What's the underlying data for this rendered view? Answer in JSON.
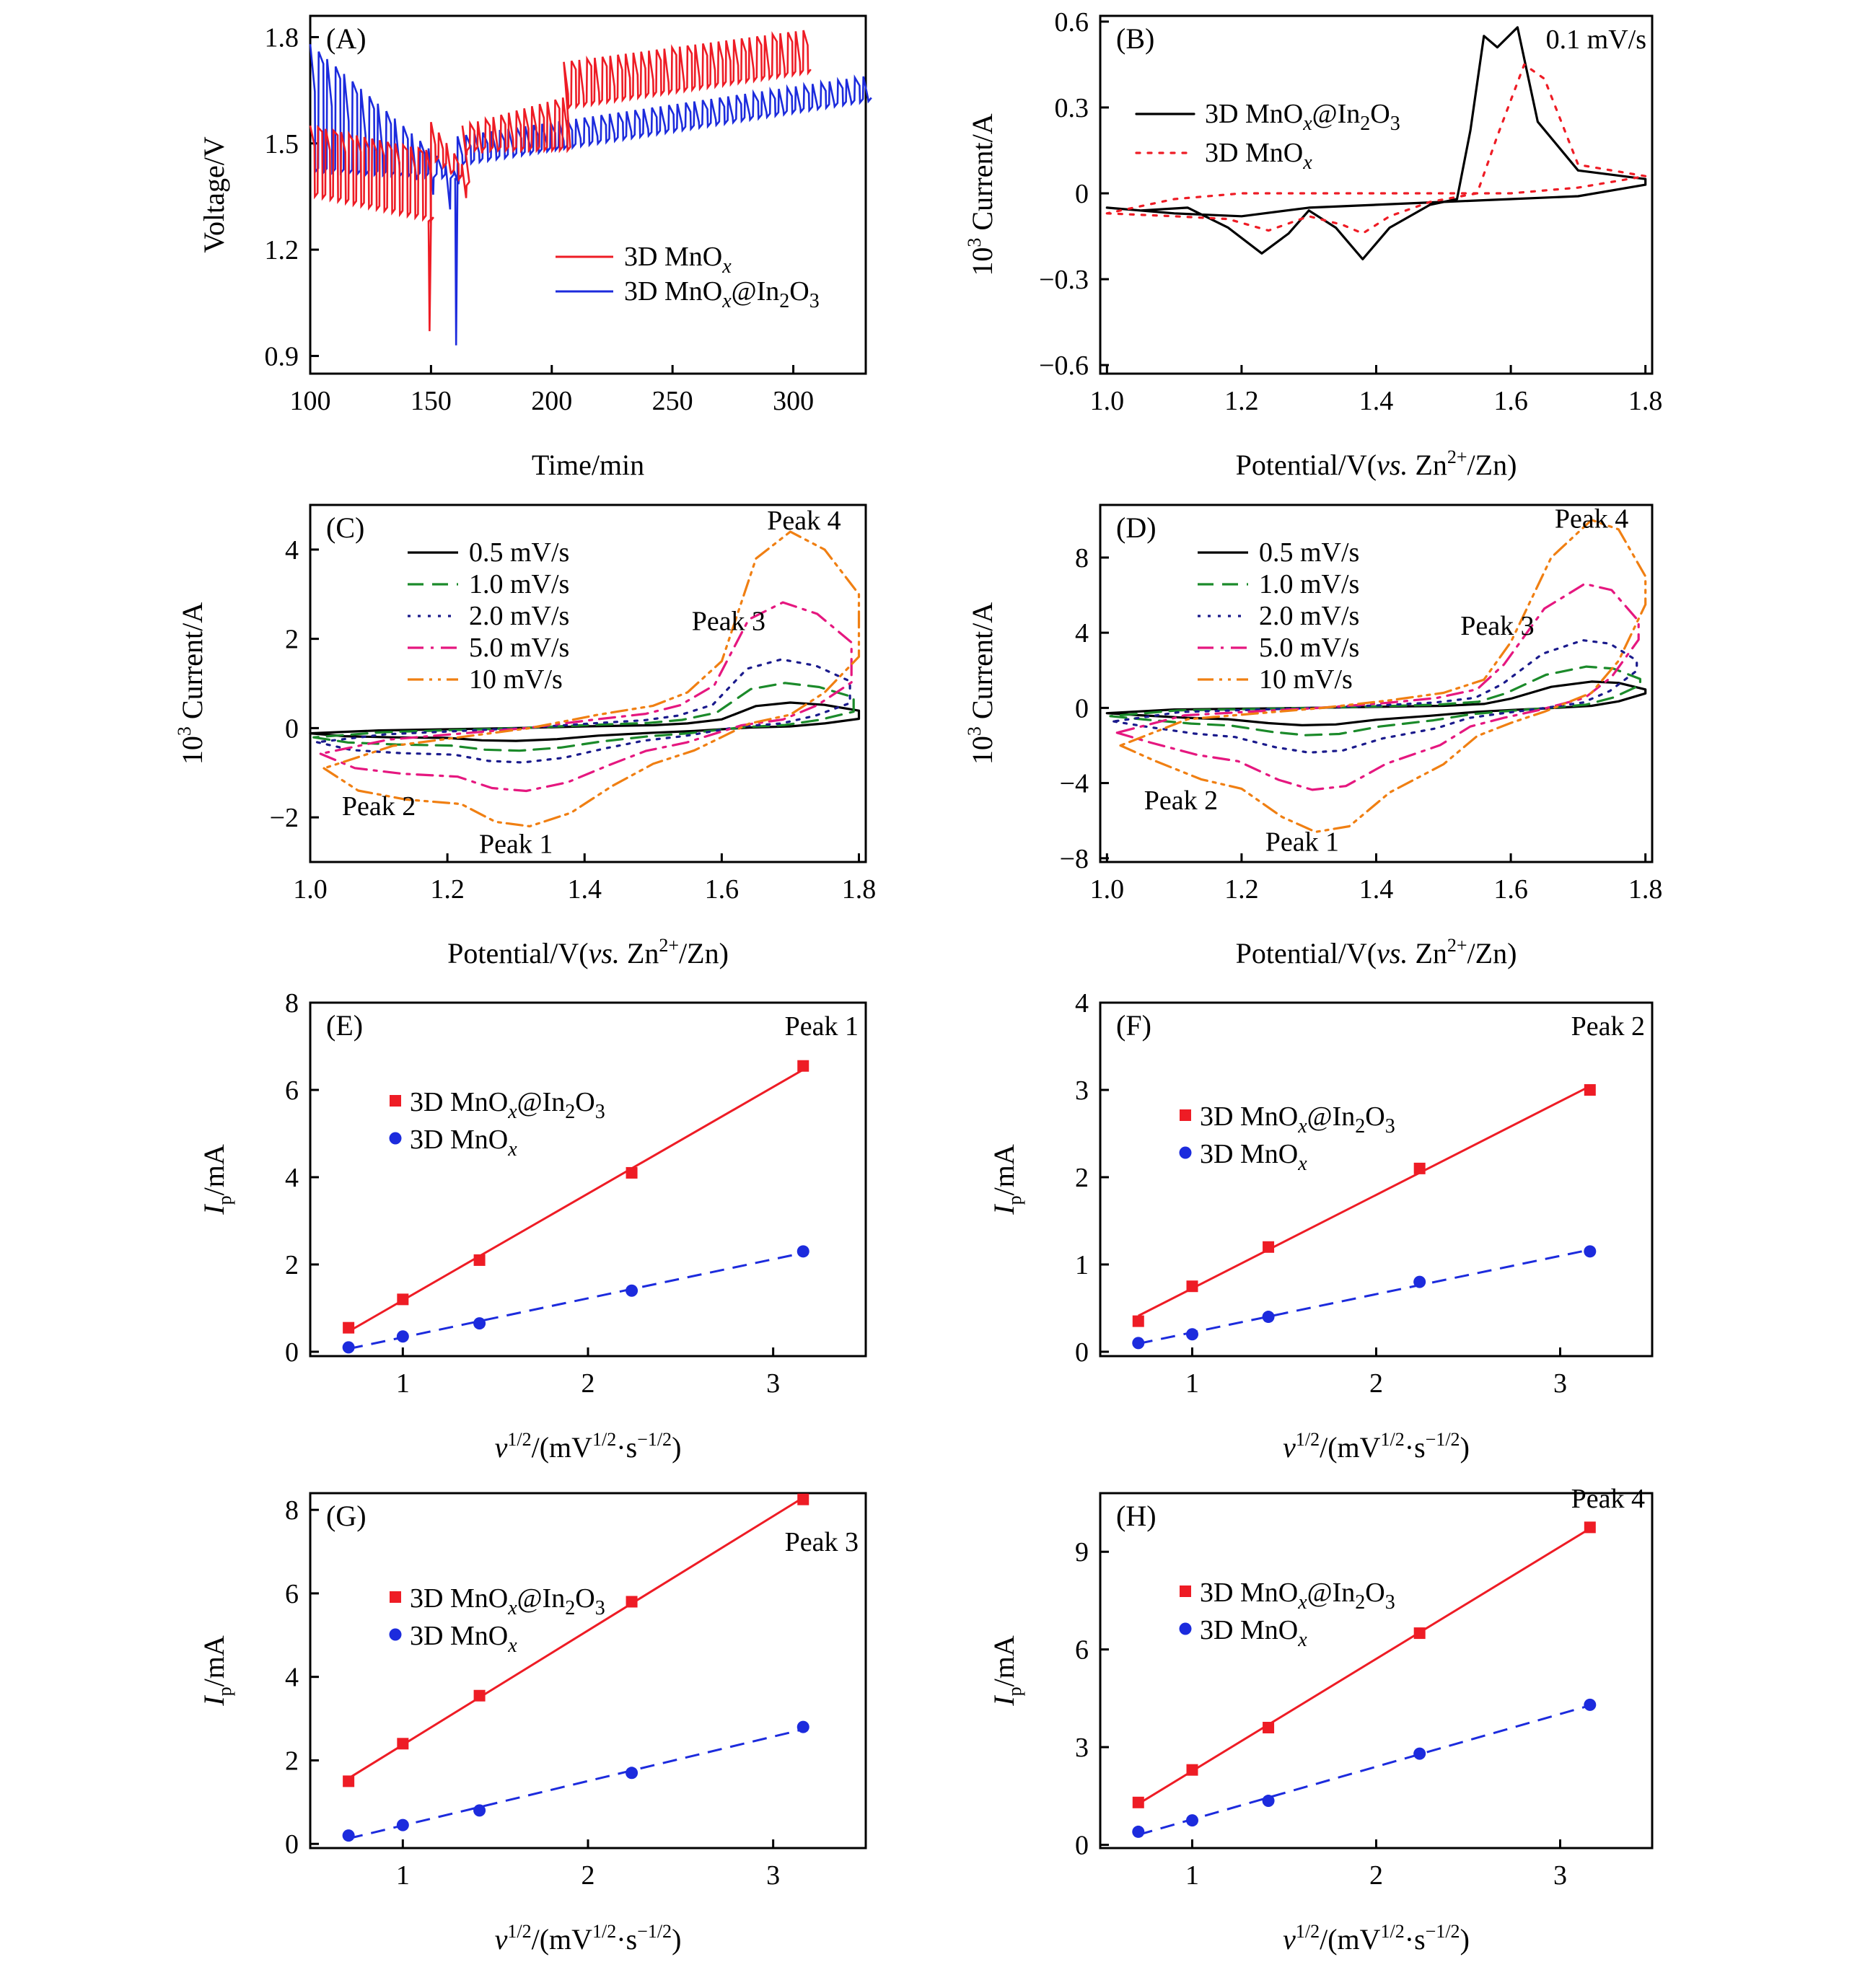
{
  "colors": {
    "red": "#ee1c25",
    "blue": "#1c2bdd",
    "black": "#000000",
    "green": "#1b8a2a",
    "navy": "#1a1a8c",
    "pink": "#e5177f",
    "orange": "#f07f12"
  },
  "chart_data": [
    {
      "id": "A",
      "panel_label": "(A)",
      "type": "line",
      "xlabel": "Time/min",
      "ylabel": "Voltage/V",
      "xlim": [
        100,
        330
      ],
      "ylim": [
        0.85,
        1.86
      ],
      "xticks": [
        100,
        150,
        200,
        250,
        300
      ],
      "yticks": [
        0.9,
        1.2,
        1.5,
        1.8
      ],
      "legend_position": "lower-right",
      "series": [
        {
          "name": "3D MnOx",
          "name_main": "3D MnO",
          "name_sub": "x",
          "name_tail": "",
          "color": "red",
          "segments": [
            [
              100,
              149,
              1.55,
              1.35,
              1.48,
              1.28,
              0.06
            ],
            [
              149,
              150,
              1.28,
              0.97,
              1.28,
              0.97,
              0
            ],
            [
              150,
              163,
              1.56,
              1.45,
              1.44,
              1.38,
              0.1
            ],
            [
              163,
              205,
              1.55,
              1.48,
              1.63,
              1.48,
              0.09
            ],
            [
              205,
              305,
              1.73,
              1.6,
              1.82,
              1.7,
              0.1
            ]
          ],
          "period": 3.2
        },
        {
          "name": "3D MnOx@In2O3",
          "name_main": "3D MnO",
          "name_sub": "x",
          "name_tail": "@In2O3",
          "color": "blue",
          "segments": [
            [
              100,
              160,
              1.78,
              1.42,
              1.42,
              1.4,
              0.14
            ],
            [
              160,
              161,
              1.4,
              0.93,
              1.4,
              0.93,
              0
            ],
            [
              161,
              330,
              1.52,
              1.44,
              1.69,
              1.62,
              0.07
            ]
          ],
          "period": 3.5
        }
      ]
    },
    {
      "id": "B",
      "panel_label": "(B)",
      "type": "line",
      "xlabel": "Potential/V(vs. Zn2+/Zn)",
      "ylabel": "103 Current/A",
      "xlim": [
        0.99,
        1.81
      ],
      "ylim": [
        -0.63,
        0.62
      ],
      "xticks": [
        1.0,
        1.2,
        1.4,
        1.6,
        1.8
      ],
      "yticks": [
        -0.6,
        -0.3,
        0,
        0.3,
        0.6
      ],
      "annotation": "0.1 mV/s",
      "legend_position": "upper-left",
      "series": [
        {
          "name": "3D MnOx@In2O3",
          "name_main": "3D MnO",
          "name_sub": "x",
          "name_tail": "@In2O3",
          "color": "black",
          "dash": "solid",
          "x": [
            1.0,
            1.05,
            1.12,
            1.18,
            1.23,
            1.27,
            1.3,
            1.34,
            1.38,
            1.42,
            1.48,
            1.52,
            1.54,
            1.56,
            1.58,
            1.61,
            1.64,
            1.7,
            1.8,
            1.8,
            1.7,
            1.6,
            1.5,
            1.4,
            1.3,
            1.2,
            1.1,
            1.0
          ],
          "y": [
            -0.05,
            -0.06,
            -0.05,
            -0.12,
            -0.21,
            -0.14,
            -0.06,
            -0.12,
            -0.23,
            -0.12,
            -0.04,
            -0.02,
            0.22,
            0.55,
            0.51,
            0.58,
            0.25,
            0.08,
            0.05,
            0.03,
            -0.01,
            -0.02,
            -0.03,
            -0.04,
            -0.05,
            -0.08,
            -0.07,
            -0.05
          ]
        },
        {
          "name": "3D MnOx",
          "name_main": "3D MnO",
          "name_sub": "x",
          "name_tail": "",
          "color": "red",
          "dash": "dotted",
          "x": [
            1.0,
            1.1,
            1.18,
            1.24,
            1.3,
            1.35,
            1.38,
            1.42,
            1.48,
            1.55,
            1.58,
            1.62,
            1.65,
            1.7,
            1.8,
            1.7,
            1.6,
            1.5,
            1.4,
            1.3,
            1.2,
            1.1,
            1.0
          ],
          "y": [
            -0.07,
            -0.08,
            -0.09,
            -0.13,
            -0.08,
            -0.11,
            -0.14,
            -0.08,
            -0.03,
            0.0,
            0.2,
            0.45,
            0.4,
            0.1,
            0.06,
            0.02,
            0.0,
            0.0,
            0.0,
            0.0,
            0.0,
            -0.02,
            -0.07
          ]
        }
      ]
    },
    {
      "id": "C",
      "panel_label": "(C)",
      "type": "line",
      "xlabel": "Potential/V(vs. Zn2+/Zn)",
      "ylabel": "103 Current/A",
      "xlim": [
        1.0,
        1.81
      ],
      "ylim": [
        -3.0,
        5.0
      ],
      "xticks": [
        1.0,
        1.2,
        1.4,
        1.6,
        1.8
      ],
      "yticks": [
        -2,
        0,
        2,
        4
      ],
      "legend_position": "upper-left",
      "annotations": [
        "Peak 1",
        "Peak 2",
        "Peak 3",
        "Peak 4"
      ],
      "series": [
        {
          "name": "0.5 mV/s",
          "color": "black",
          "dash": "solid",
          "scale": 0.13,
          "shift": 0.0
        },
        {
          "name": "1.0 mV/s",
          "color": "green",
          "dash": "dashed",
          "scale": 0.23,
          "shift": 0.01
        },
        {
          "name": "2.0 mV/s",
          "color": "navy",
          "dash": "dotted",
          "scale": 0.35,
          "shift": 0.02
        },
        {
          "name": "5.0 mV/s",
          "color": "pink",
          "dash": "dashdot",
          "scale": 0.64,
          "shift": 0.03
        },
        {
          "name": "10 mV/s",
          "color": "orange",
          "dash": "dashdotdot",
          "scale": 1.0,
          "shift": 0.04
        }
      ],
      "template_x": [
        1.0,
        1.05,
        1.12,
        1.2,
        1.25,
        1.3,
        1.36,
        1.42,
        1.5,
        1.56,
        1.6,
        1.64,
        1.7,
        1.75,
        1.8,
        1.8,
        1.75,
        1.7,
        1.65,
        1.6,
        1.55,
        1.5,
        1.4,
        1.3,
        1.2,
        1.1,
        1.0
      ],
      "template_y": [
        -0.9,
        -1.4,
        -1.6,
        -1.7,
        -2.1,
        -2.2,
        -1.9,
        -1.3,
        -0.8,
        -0.5,
        -0.2,
        0.1,
        0.3,
        0.8,
        1.6,
        3.0,
        4.0,
        4.4,
        3.8,
        1.5,
        0.8,
        0.5,
        0.3,
        0.0,
        -0.2,
        -0.4,
        -0.9
      ]
    },
    {
      "id": "D",
      "panel_label": "(D)",
      "type": "line",
      "xlabel": "Potential/V(vs. Zn2+/Zn)",
      "ylabel": "103 Current/A",
      "xlim": [
        0.99,
        1.81
      ],
      "ylim": [
        -8.2,
        10.8
      ],
      "xticks": [
        1.0,
        1.2,
        1.4,
        1.6,
        1.8
      ],
      "yticks": [
        -8,
        -4,
        0,
        4,
        8
      ],
      "legend_position": "upper-left",
      "annotations": [
        "Peak 1",
        "Peak 2",
        "Peak 3",
        "Peak 4"
      ],
      "series": [
        {
          "name": "0.5 mV/s",
          "color": "black",
          "dash": "solid",
          "scale": 0.14,
          "shift": 0.0
        },
        {
          "name": "1.0 mV/s",
          "color": "green",
          "dash": "dashed",
          "scale": 0.22,
          "shift": 0.01
        },
        {
          "name": "2.0 mV/s",
          "color": "navy",
          "dash": "dotted",
          "scale": 0.36,
          "shift": 0.02
        },
        {
          "name": "5.0 mV/s",
          "color": "pink",
          "dash": "dashdot",
          "scale": 0.66,
          "shift": 0.03
        },
        {
          "name": "10 mV/s",
          "color": "orange",
          "dash": "dashdotdot",
          "scale": 1.0,
          "shift": 0.04
        }
      ],
      "template_x": [
        1.0,
        1.05,
        1.12,
        1.18,
        1.24,
        1.29,
        1.34,
        1.4,
        1.48,
        1.55,
        1.6,
        1.65,
        1.72,
        1.76,
        1.8,
        1.8,
        1.76,
        1.72,
        1.66,
        1.6,
        1.56,
        1.5,
        1.4,
        1.3,
        1.2,
        1.1,
        1.0
      ],
      "template_y": [
        -2.0,
        -2.8,
        -3.8,
        -4.3,
        -5.8,
        -6.6,
        -6.3,
        -4.5,
        -3.0,
        -1.5,
        -0.8,
        -0.2,
        0.8,
        2.5,
        5.5,
        7.0,
        9.5,
        10.0,
        8.0,
        3.5,
        1.5,
        0.8,
        0.4,
        0.0,
        -0.3,
        -0.6,
        -2.0
      ]
    },
    {
      "id": "E",
      "panel_label": "(E)",
      "type": "scatter",
      "peak_label": "Peak 1",
      "xlabel": "v1/2/(mV1/2·s−1/2)",
      "ylabel": "Ip/mA",
      "xlim": [
        0.5,
        3.5
      ],
      "ylim": [
        -0.1,
        8.0
      ],
      "xticks": [
        1,
        2,
        3
      ],
      "yticks": [
        0,
        2,
        4,
        6,
        8
      ],
      "legend_position": "upper-left",
      "series": [
        {
          "name": "3D MnOx@In2O3",
          "name_main": "3D MnO",
          "name_sub": "x",
          "name_tail": "@In2O3",
          "color": "red",
          "marker": "square",
          "fit": "solid",
          "x": [
            0.707,
            1.0,
            1.414,
            2.236,
            3.162
          ],
          "y": [
            0.55,
            1.2,
            2.1,
            4.1,
            6.55
          ]
        },
        {
          "name": "3D MnOx",
          "name_main": "3D MnO",
          "name_sub": "x",
          "name_tail": "",
          "color": "blue",
          "marker": "circle",
          "fit": "dashed",
          "x": [
            0.707,
            1.0,
            1.414,
            2.236,
            3.162
          ],
          "y": [
            0.1,
            0.35,
            0.65,
            1.4,
            2.3
          ]
        }
      ]
    },
    {
      "id": "F",
      "panel_label": "(F)",
      "type": "scatter",
      "peak_label": "Peak 2",
      "xlabel": "v1/2/(mV1/2·s−1/2)",
      "ylabel": "Ip/mA",
      "xlim": [
        0.5,
        3.5
      ],
      "ylim": [
        -0.05,
        4.0
      ],
      "xticks": [
        1,
        2,
        3
      ],
      "yticks": [
        0,
        1,
        2,
        3,
        4
      ],
      "legend_position": "upper-left",
      "series": [
        {
          "name": "3D MnOx@In2O3",
          "name_main": "3D MnO",
          "name_sub": "x",
          "name_tail": "@In2O3",
          "color": "red",
          "marker": "square",
          "fit": "solid",
          "x": [
            0.707,
            1.0,
            1.414,
            2.236,
            3.162
          ],
          "y": [
            0.35,
            0.75,
            1.2,
            2.1,
            3.0
          ]
        },
        {
          "name": "3D MnOx",
          "name_main": "3D MnO",
          "name_sub": "x",
          "name_tail": "",
          "color": "blue",
          "marker": "circle",
          "fit": "dashed",
          "x": [
            0.707,
            1.0,
            1.414,
            2.236,
            3.162
          ],
          "y": [
            0.1,
            0.2,
            0.4,
            0.8,
            1.15
          ]
        }
      ]
    },
    {
      "id": "G",
      "panel_label": "(G)",
      "type": "scatter",
      "peak_label": "Peak 3",
      "xlabel": "v1/2/(mV1/2·s−1/2)",
      "ylabel": "Ip/mA",
      "xlim": [
        0.5,
        3.5
      ],
      "ylim": [
        -0.1,
        8.4
      ],
      "xticks": [
        1,
        2,
        3
      ],
      "yticks": [
        0,
        2,
        4,
        6,
        8
      ],
      "legend_position": "upper-left",
      "series": [
        {
          "name": "3D MnOx@In2O3",
          "name_main": "3D MnO",
          "name_sub": "x",
          "name_tail": "@In2O3",
          "color": "red",
          "marker": "square",
          "fit": "solid",
          "x": [
            0.707,
            1.0,
            1.414,
            2.236,
            3.162
          ],
          "y": [
            1.5,
            2.4,
            3.55,
            5.8,
            8.25
          ]
        },
        {
          "name": "3D MnOx",
          "name_main": "3D MnO",
          "name_sub": "x",
          "name_tail": "",
          "color": "blue",
          "marker": "circle",
          "fit": "dashed",
          "x": [
            0.707,
            1.0,
            1.414,
            2.236,
            3.162
          ],
          "y": [
            0.2,
            0.45,
            0.8,
            1.7,
            2.8
          ]
        }
      ]
    },
    {
      "id": "H",
      "panel_label": "(H)",
      "type": "scatter",
      "peak_label": "Peak 4",
      "xlabel": "v1/2/(mV1/2·s−1/2)",
      "ylabel": "Ip/mA",
      "xlim": [
        0.5,
        3.5
      ],
      "ylim": [
        -0.1,
        10.8
      ],
      "xticks": [
        1,
        2,
        3
      ],
      "yticks": [
        0,
        3,
        6,
        9
      ],
      "legend_position": "upper-left",
      "series": [
        {
          "name": "3D MnOx@In2O3",
          "name_main": "3D MnO",
          "name_sub": "x",
          "name_tail": "@In2O3",
          "color": "red",
          "marker": "square",
          "fit": "solid",
          "x": [
            0.707,
            1.0,
            1.414,
            2.236,
            3.162
          ],
          "y": [
            1.3,
            2.3,
            3.6,
            6.5,
            9.75
          ]
        },
        {
          "name": "3D MnOx",
          "name_main": "3D MnO",
          "name_sub": "x",
          "name_tail": "",
          "color": "blue",
          "marker": "circle",
          "fit": "dashed",
          "x": [
            0.707,
            1.0,
            1.414,
            2.236,
            3.162
          ],
          "y": [
            0.4,
            0.75,
            1.35,
            2.8,
            4.3
          ]
        }
      ]
    }
  ]
}
